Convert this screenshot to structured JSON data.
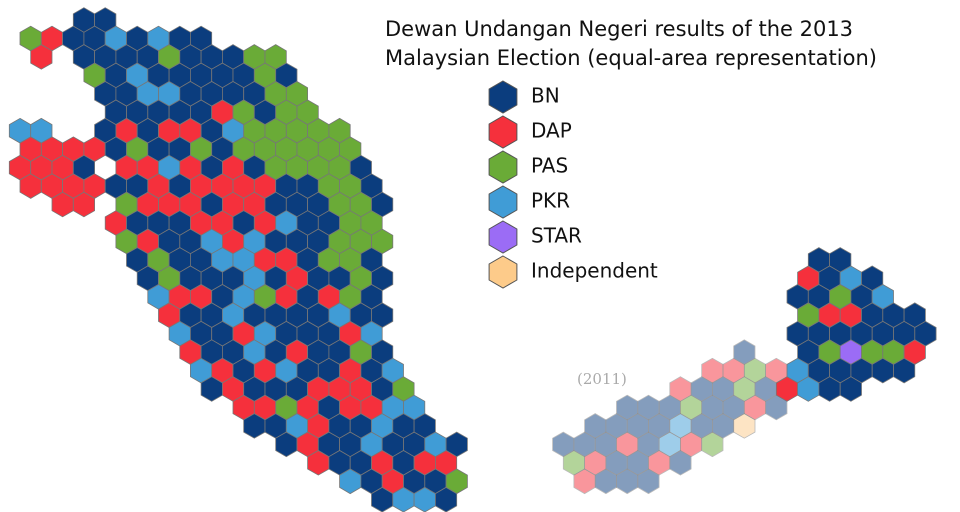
{
  "title_lines": [
    "Dewan Undangan Negeri results of the 2013",
    "Malaysian Election (equal-area representation)"
  ],
  "legend": [
    {
      "label": "BN",
      "color": "#0b3d7e"
    },
    {
      "label": "DAP",
      "color": "#f5303c"
    },
    {
      "label": "PAS",
      "color": "#6aab37"
    },
    {
      "label": "PKR",
      "color": "#409cd6"
    },
    {
      "label": "STAR",
      "color": "#9b6cf5"
    },
    {
      "label": "Independent",
      "color": "#fdcb8a"
    }
  ],
  "annotation": "(2011)"
}
